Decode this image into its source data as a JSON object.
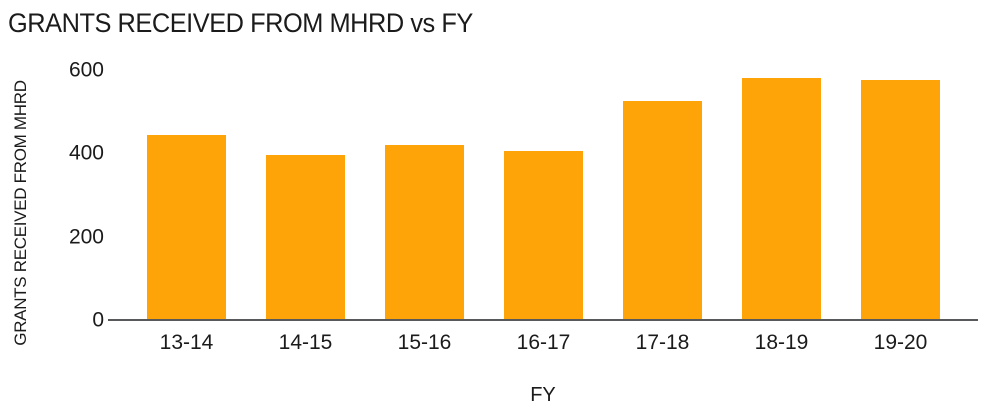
{
  "chart_data": {
    "type": "bar",
    "title": "GRANTS RECEIVED FROM MHRD vs FY",
    "xlabel": "FY",
    "ylabel": "GRANTS RECEIVED FROM MHRD",
    "categories": [
      "13-14",
      "14-15",
      "15-16",
      "16-17",
      "17-18",
      "18-19",
      "19-20"
    ],
    "values": [
      445,
      395,
      420,
      405,
      525,
      580,
      575
    ],
    "ylim": [
      0,
      600
    ],
    "yticks": [
      0,
      200,
      400,
      600
    ],
    "grid": false,
    "legend_position": "none",
    "colors": {
      "bar": "#FFA408",
      "axis_line": "#58595B",
      "text": "#1B1B1B",
      "background": "#FFFFFF"
    }
  }
}
